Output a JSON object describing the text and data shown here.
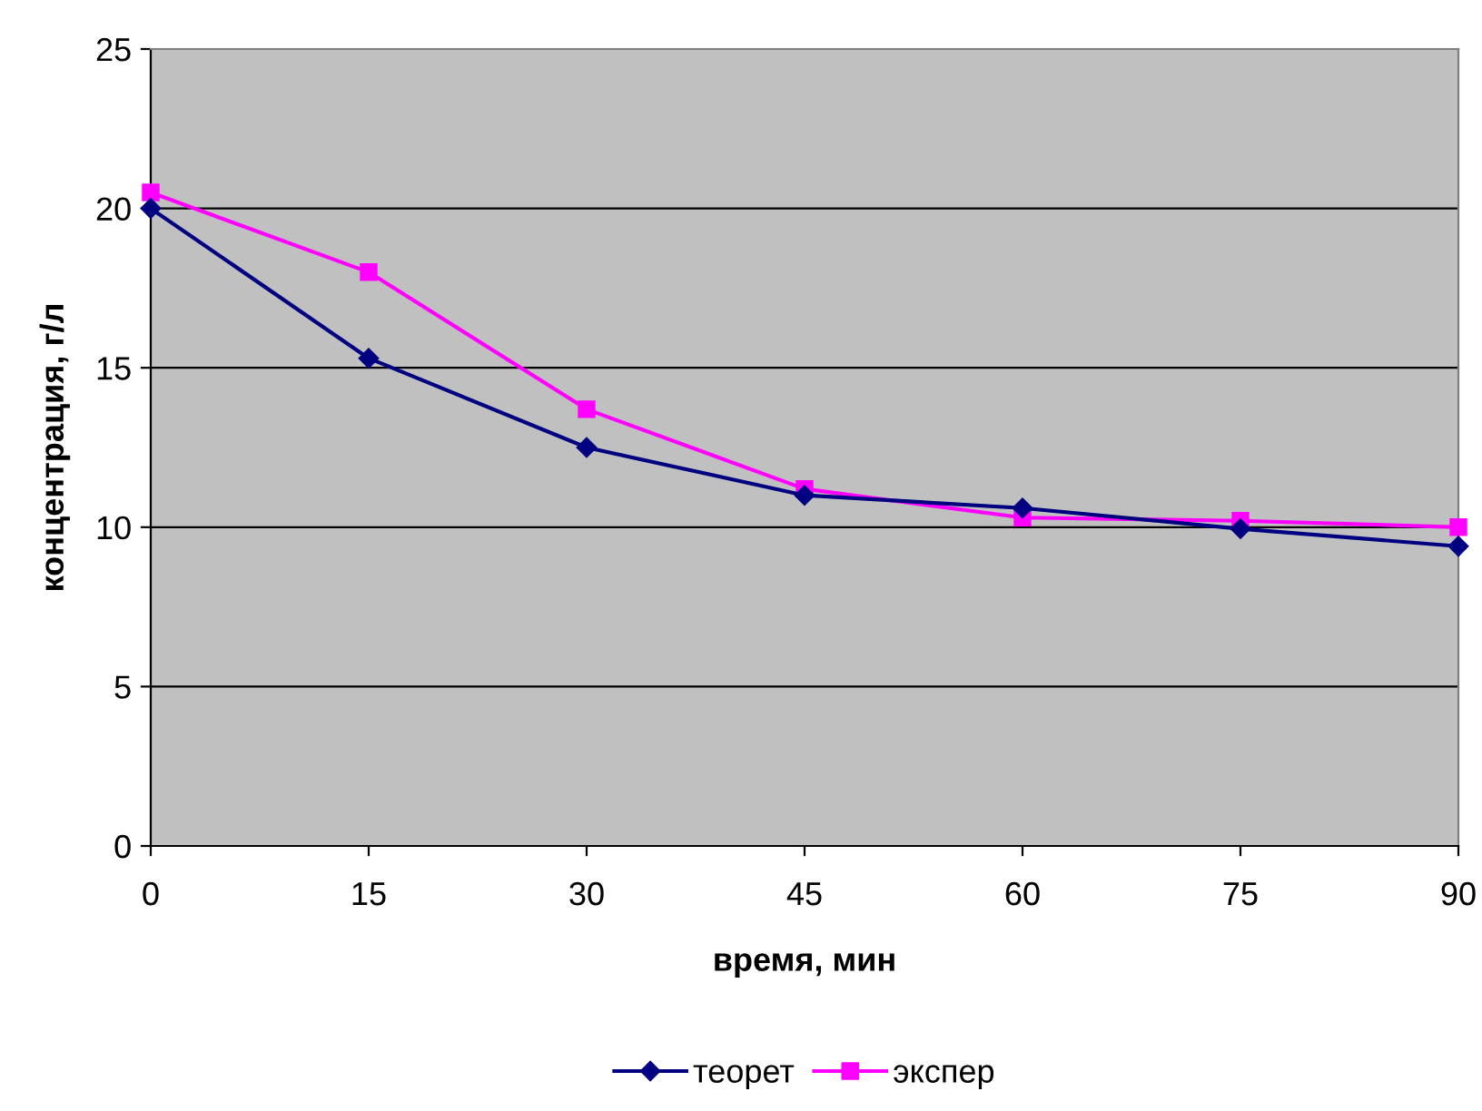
{
  "chart_data": {
    "type": "line",
    "xlabel": "время, мин",
    "ylabel": "концентрация, г/л",
    "x": [
      0,
      15,
      30,
      45,
      60,
      75,
      90
    ],
    "series": [
      {
        "name": "теорет",
        "color": "#000080",
        "marker": "diamond",
        "values": [
          20.0,
          15.3,
          12.5,
          11.0,
          10.6,
          9.95,
          9.4
        ]
      },
      {
        "name": "экспер",
        "color": "#ff00ff",
        "marker": "square",
        "values": [
          20.5,
          18.0,
          13.7,
          11.2,
          10.3,
          10.2,
          10.0
        ]
      }
    ],
    "xlim": [
      0,
      90
    ],
    "xticks": [
      0,
      15,
      30,
      45,
      60,
      75,
      90
    ],
    "ylim": [
      0,
      25
    ],
    "yticks": [
      0,
      5,
      10,
      15,
      20,
      25
    ],
    "grid": "y",
    "legend": "bottom",
    "line_style": "solid"
  }
}
